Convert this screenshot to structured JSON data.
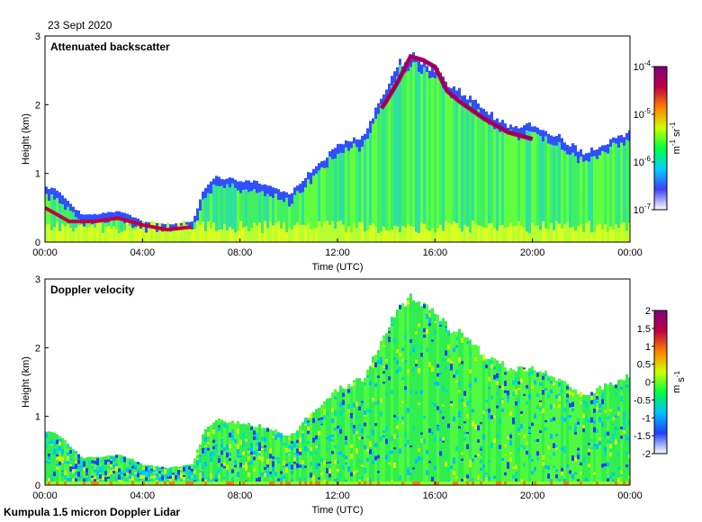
{
  "header": {
    "date": "23 Sept 2020"
  },
  "footer": {
    "instrument": "Kumpula 1.5 micron Doppler Lidar"
  },
  "chart_data": [
    {
      "type": "heatmap",
      "title": "Attenuated backscatter",
      "xlabel": "Time (UTC)",
      "ylabel": "Height (km)",
      "xticks": [
        "00:00",
        "04:00",
        "08:00",
        "12:00",
        "16:00",
        "20:00",
        "00:00"
      ],
      "xlim_hours": [
        0,
        24
      ],
      "yticks": [
        0,
        1,
        2,
        3
      ],
      "ylim": [
        0,
        3
      ],
      "colorbar": {
        "scale": "log",
        "ticks": [
          "10-7",
          "10-6",
          "10-5",
          "10-4"
        ],
        "tick_exponents": [
          -7,
          -6,
          -5,
          -4
        ],
        "unit_parts": [
          "m",
          "-1",
          " sr",
          "-1"
        ],
        "colormap": [
          "#ffffff",
          "#4040ff",
          "#00d0ff",
          "#00ff40",
          "#d0ff00",
          "#ff8000",
          "#c00040",
          "#800080"
        ]
      },
      "signal_top_km": {
        "hours": [
          0,
          0.5,
          1,
          1.5,
          2,
          3,
          4,
          5,
          6,
          6.5,
          7,
          8,
          9,
          10,
          11,
          12,
          13,
          13.5,
          14,
          14.5,
          15,
          16,
          16.5,
          17,
          18,
          19,
          20,
          21,
          22,
          23,
          24
        ],
        "values": [
          0.8,
          0.75,
          0.55,
          0.4,
          0.4,
          0.45,
          0.3,
          0.25,
          0.3,
          0.8,
          0.95,
          0.9,
          0.85,
          0.7,
          1.1,
          1.4,
          1.55,
          1.9,
          2.3,
          2.6,
          2.75,
          2.5,
          2.3,
          2.2,
          1.9,
          1.7,
          1.7,
          1.55,
          1.3,
          1.45,
          1.6
        ]
      },
      "cloud_layer_km": {
        "hours": [
          13.8,
          14,
          14.5,
          15,
          15.5,
          16,
          16.5,
          17,
          18,
          19,
          20
        ],
        "values": [
          1.95,
          2.05,
          2.35,
          2.7,
          2.65,
          2.55,
          2.2,
          2.05,
          1.8,
          1.6,
          1.5
        ]
      }
    },
    {
      "type": "heatmap",
      "title": "Doppler velocity",
      "xlabel": "Time (UTC)",
      "ylabel": "Height (km)",
      "xticks": [
        "00:00",
        "04:00",
        "08:00",
        "12:00",
        "16:00",
        "20:00",
        "00:00"
      ],
      "xlim_hours": [
        0,
        24
      ],
      "yticks": [
        0,
        1,
        2,
        3
      ],
      "ylim": [
        0,
        3
      ],
      "colorbar": {
        "scale": "linear",
        "ticks": [
          "-2",
          "-1.5",
          "-1",
          "-0.5",
          "0",
          "0.5",
          "1",
          "1.5",
          "2"
        ],
        "range": [
          -2,
          2
        ],
        "unit_parts": [
          "m",
          " s",
          "-1"
        ],
        "colormap": [
          "#ffffff",
          "#2040ff",
          "#00c0ff",
          "#00ff40",
          "#d0ff00",
          "#ff8000",
          "#c00040",
          "#800080"
        ]
      },
      "signal_top_km": {
        "hours": [
          0,
          0.5,
          1,
          1.5,
          2,
          3,
          4,
          5,
          6,
          6.5,
          7,
          8,
          9,
          10,
          11,
          12,
          13,
          13.5,
          14,
          14.5,
          15,
          16,
          16.5,
          17,
          18,
          19,
          20,
          21,
          22,
          23,
          24
        ],
        "values": [
          0.8,
          0.75,
          0.55,
          0.4,
          0.4,
          0.45,
          0.3,
          0.25,
          0.3,
          0.8,
          0.95,
          0.9,
          0.85,
          0.7,
          1.1,
          1.4,
          1.55,
          1.9,
          2.3,
          2.6,
          2.75,
          2.5,
          2.3,
          2.2,
          1.9,
          1.7,
          1.7,
          1.55,
          1.3,
          1.45,
          1.6
        ]
      }
    }
  ]
}
